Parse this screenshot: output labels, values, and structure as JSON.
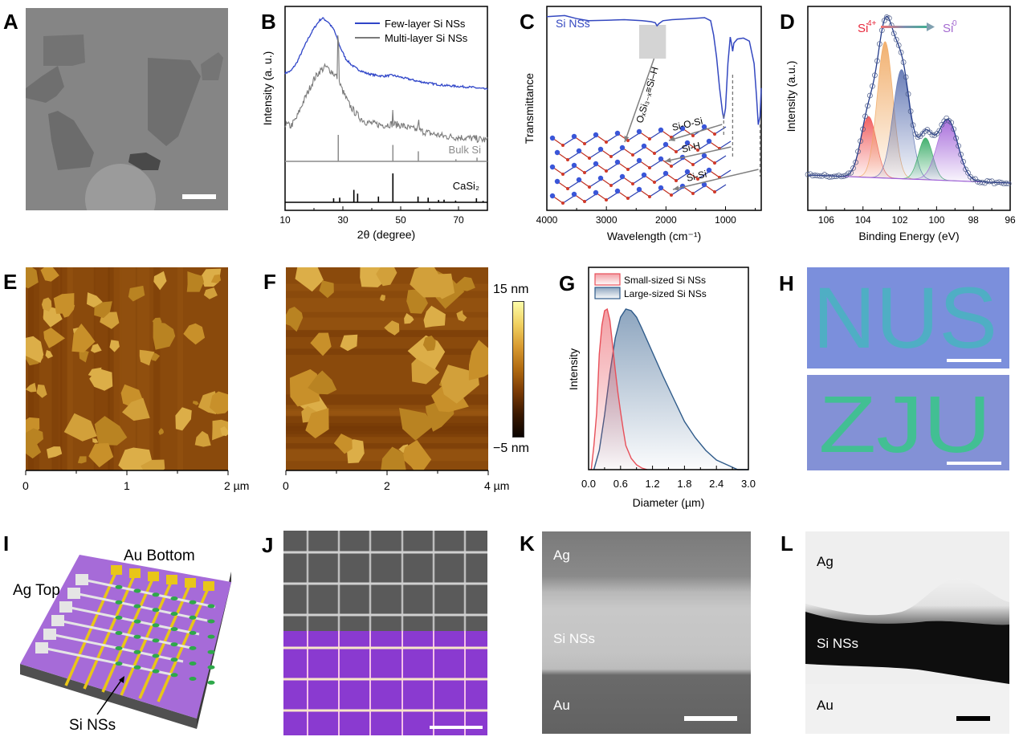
{
  "figure": {
    "panels": {
      "A": {
        "letter": "A",
        "type": "TEM image",
        "scale_bar": true
      },
      "B": {
        "letter": "B"
      },
      "C": {
        "letter": "C"
      },
      "D": {
        "letter": "D"
      },
      "E": {
        "letter": "E",
        "axis_ticks": [
          "0",
          "1",
          "2 µm"
        ]
      },
      "F": {
        "letter": "F",
        "axis_ticks": [
          "0",
          "2",
          "4 µm"
        ],
        "colorbar": {
          "max_label": "15 nm",
          "min_label": "−5 nm",
          "colors": [
            "#0a0400",
            "#3a1800",
            "#7a3a05",
            "#b06a10",
            "#d89a30",
            "#f0d060",
            "#fcfca8"
          ]
        }
      },
      "G": {
        "letter": "G"
      },
      "H": {
        "letter": "H",
        "text_top": "NUS",
        "text_bottom": "ZJU",
        "bg_color": "#7b8fdc",
        "pattern_color": "#3ab8b0"
      },
      "I": {
        "letter": "I",
        "labels": {
          "au_bottom": "Au Bottom",
          "ag_top": "Ag Top",
          "si_nss": "Si NSs"
        },
        "colors": {
          "substrate": "#a66bd8",
          "au": "#e8c619",
          "ag": "#e5e5e5",
          "si": "#2ea84a"
        }
      },
      "J": {
        "letter": "J",
        "scale_bar": true
      },
      "K": {
        "letter": "K",
        "labels": {
          "top": "Ag",
          "mid": "Si NSs",
          "bottom": "Au"
        }
      },
      "L": {
        "letter": "L",
        "labels": {
          "top": "Ag",
          "mid": "Si NSs",
          "bottom": "Au"
        }
      }
    }
  },
  "chart_data": [
    {
      "panel": "B",
      "type": "line",
      "title": "",
      "xlabel": "2θ (degree)",
      "ylabel": "Intensity (a. u.)",
      "xlim": [
        10,
        80
      ],
      "xticks": [
        "10",
        "30",
        "50",
        "70"
      ],
      "legend": {
        "placement": "top-right",
        "entries": [
          "Few-layer Si NSs",
          "Multi-layer Si NSs"
        ]
      },
      "series": [
        {
          "name": "Few-layer Si NSs",
          "color": "#2f45c8",
          "x": [
            10,
            12,
            14,
            16,
            18,
            20,
            22,
            23,
            25,
            27,
            29,
            31,
            33,
            35,
            38,
            41,
            44,
            47,
            50,
            53,
            56,
            60,
            65,
            70,
            75,
            80
          ],
          "y": [
            0.72,
            0.73,
            0.77,
            0.83,
            0.89,
            0.94,
            0.98,
            0.99,
            0.97,
            0.93,
            0.85,
            0.79,
            0.76,
            0.74,
            0.72,
            0.71,
            0.705,
            0.71,
            0.7,
            0.69,
            0.68,
            0.67,
            0.66,
            0.655,
            0.65,
            0.64
          ]
        },
        {
          "name": "Multi-layer Si NSs",
          "color": "#7a7a7a",
          "x": [
            10,
            12,
            14,
            16,
            18,
            20,
            22,
            24,
            26,
            28,
            30,
            32,
            34,
            36,
            38,
            41,
            44,
            47,
            50,
            53,
            56,
            60,
            65,
            70,
            75,
            80
          ],
          "y": [
            0.47,
            0.46,
            0.5,
            0.57,
            0.63,
            0.69,
            0.73,
            0.75,
            0.73,
            0.7,
            0.63,
            0.57,
            0.53,
            0.5,
            0.48,
            0.47,
            0.465,
            0.47,
            0.465,
            0.45,
            0.44,
            0.425,
            0.41,
            0.405,
            0.4,
            0.39
          ],
          "sharp_peaks": [
            {
              "x": 28.4,
              "height": 0.2
            },
            {
              "x": 47.3,
              "height": 0.06
            },
            {
              "x": 56.1,
              "height": 0.04
            }
          ]
        }
      ],
      "reference_patterns": [
        {
          "name": "Bulk Si",
          "color": "#8c8c8c",
          "peaks": [
            {
              "x": 28.4,
              "rel": 1.0
            },
            {
              "x": 47.3,
              "rel": 0.62
            },
            {
              "x": 56.1,
              "rel": 0.38
            },
            {
              "x": 69.1,
              "rel": 0.08
            },
            {
              "x": 76.4,
              "rel": 0.14
            }
          ]
        },
        {
          "name": "CaSi₂",
          "color": "#000000",
          "peaks": [
            {
              "x": 26.8,
              "rel": 0.14
            },
            {
              "x": 28.9,
              "rel": 0.16
            },
            {
              "x": 33.8,
              "rel": 0.43
            },
            {
              "x": 35.1,
              "rel": 0.3
            },
            {
              "x": 42.3,
              "rel": 0.2
            },
            {
              "x": 47.3,
              "rel": 1.0
            },
            {
              "x": 56.0,
              "rel": 0.2
            },
            {
              "x": 59.5,
              "rel": 0.16
            },
            {
              "x": 63.1,
              "rel": 0.08
            },
            {
              "x": 65.0,
              "rel": 0.09
            },
            {
              "x": 69.0,
              "rel": 0.06
            },
            {
              "x": 76.2,
              "rel": 0.14
            },
            {
              "x": 78.5,
              "rel": 0.05
            }
          ]
        }
      ]
    },
    {
      "panel": "C",
      "type": "line",
      "xlabel": "Wavelength (cm⁻¹)",
      "ylabel": "Transmittance",
      "xlim": [
        4000,
        400
      ],
      "xticks": [
        "4000",
        "3000",
        "2000",
        "1000"
      ],
      "legend": {
        "placement": "top-left",
        "entries": [
          "Si NSs"
        ]
      },
      "series": [
        {
          "name": "Si NSs",
          "color": "#3448c0",
          "x": [
            4000,
            3700,
            3500,
            3300,
            3000,
            2700,
            2400,
            2250,
            2180,
            2150,
            2120,
            2050,
            1900,
            1600,
            1350,
            1250,
            1200,
            1150,
            1100,
            1050,
            1030,
            1000,
            960,
            920,
            900,
            880,
            860,
            800,
            700,
            600,
            520,
            480,
            450,
            420,
            400
          ],
          "y": [
            0.95,
            0.955,
            0.94,
            0.93,
            0.932,
            0.935,
            0.93,
            0.925,
            0.92,
            0.905,
            0.915,
            0.93,
            0.935,
            0.94,
            0.945,
            0.93,
            0.86,
            0.75,
            0.6,
            0.48,
            0.45,
            0.5,
            0.72,
            0.85,
            0.82,
            0.78,
            0.82,
            0.84,
            0.845,
            0.83,
            0.72,
            0.56,
            0.42,
            0.46,
            0.6
          ]
        }
      ],
      "annotations": [
        "OₓSi₃₋ₓ≡Si–H",
        "Si-O-Si",
        "Si-H",
        "Si-Si"
      ],
      "highlight_region": [
        2450,
        2000
      ]
    },
    {
      "panel": "D",
      "type": "line",
      "xlabel": "Binding Energy (eV)",
      "ylabel": "Intensity (a.u.)",
      "xlim": [
        107,
        96
      ],
      "xticks": [
        "106",
        "104",
        "102",
        "100",
        "98",
        "96"
      ],
      "annotation": {
        "from": "Si⁴⁺",
        "to": "Si⁰",
        "from_color": "#e8283c",
        "to_color": "#a46ad0"
      },
      "baseline": {
        "start": 0.1,
        "end": 0.05
      },
      "components": [
        {
          "name": "peak-1",
          "center": 103.7,
          "height": 0.38,
          "fwhm": 1.0,
          "color": "#f05050"
        },
        {
          "name": "peak-2",
          "center": 102.8,
          "height": 0.85,
          "fwhm": 1.0,
          "color": "#f0a860"
        },
        {
          "name": "peak-3",
          "center": 101.9,
          "height": 0.68,
          "fwhm": 1.1,
          "color": "#5a70b0"
        },
        {
          "name": "peak-4",
          "center": 100.6,
          "height": 0.26,
          "fwhm": 0.9,
          "color": "#30a860"
        },
        {
          "name": "peak-5",
          "center": 99.4,
          "height": 0.38,
          "fwhm": 1.3,
          "color": "#a060d8"
        }
      ],
      "envelope_color": "#223a8a",
      "data_marker_color": "#4a5a88"
    },
    {
      "panel": "G",
      "type": "area",
      "xlabel": "Diameter (µm)",
      "ylabel": "Intensity",
      "xlim": [
        0,
        3.0
      ],
      "xticks": [
        "0.0",
        "0.6",
        "1.2",
        "1.8",
        "2.4",
        "3.0"
      ],
      "legend": {
        "placement": "top-left",
        "entries": [
          "Small-sized Si NSs",
          "Large-sized Si NSs"
        ]
      },
      "series": [
        {
          "name": "Small-sized Si NSs",
          "color": "#e8505a",
          "x": [
            0.05,
            0.1,
            0.15,
            0.2,
            0.25,
            0.3,
            0.35,
            0.4,
            0.45,
            0.5,
            0.55,
            0.6,
            0.65,
            0.7,
            0.8,
            0.9,
            1.0,
            1.1
          ],
          "y": [
            0.0,
            0.15,
            0.35,
            0.72,
            0.9,
            0.99,
            1.0,
            0.93,
            0.78,
            0.62,
            0.48,
            0.36,
            0.25,
            0.15,
            0.07,
            0.03,
            0.01,
            0.0
          ]
        },
        {
          "name": "Large-sized Si NSs",
          "color": "#2f5b8a",
          "x": [
            0.1,
            0.2,
            0.3,
            0.4,
            0.5,
            0.6,
            0.7,
            0.8,
            0.9,
            1.0,
            1.2,
            1.4,
            1.6,
            1.8,
            2.0,
            2.2,
            2.4,
            2.6,
            2.8,
            3.0
          ],
          "y": [
            0.0,
            0.12,
            0.34,
            0.6,
            0.82,
            0.95,
            1.0,
            0.99,
            0.95,
            0.88,
            0.73,
            0.58,
            0.44,
            0.3,
            0.2,
            0.12,
            0.06,
            0.03,
            0.0,
            0.0
          ]
        }
      ]
    }
  ]
}
